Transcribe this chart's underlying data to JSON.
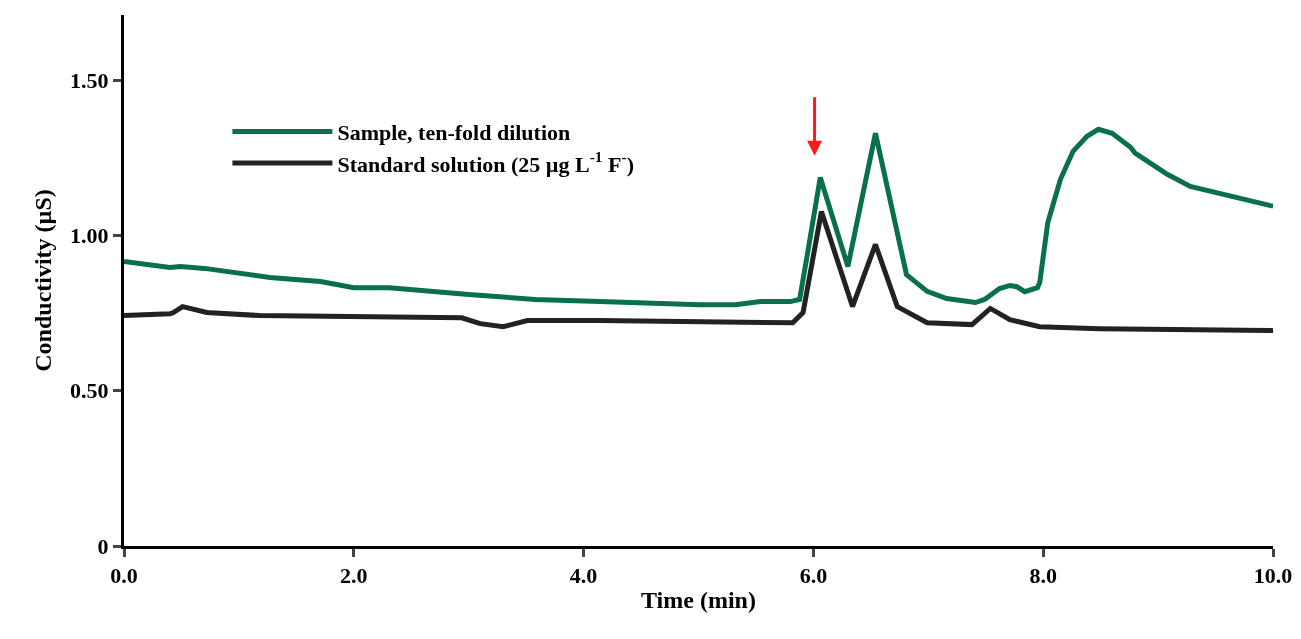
{
  "chart_data": {
    "type": "line",
    "xlabel": "Time (min)",
    "ylabel": "Conductivity (µS)",
    "xlim": [
      0,
      10
    ],
    "ylim": [
      0,
      1.71
    ],
    "xticks": [
      {
        "value": 0,
        "label": "0.0"
      },
      {
        "value": 2,
        "label": "2.0"
      },
      {
        "value": 4,
        "label": "4.0"
      },
      {
        "value": 6,
        "label": "6.0"
      },
      {
        "value": 8,
        "label": "8.0"
      },
      {
        "value": 10,
        "label": "10.0"
      }
    ],
    "yticks": [
      {
        "value": 0,
        "label": "0"
      },
      {
        "value": 0.5,
        "label": "0.50"
      },
      {
        "value": 1,
        "label": "1.00"
      },
      {
        "value": 1.5,
        "label": "1.50"
      }
    ],
    "grid": false,
    "legend": "top left",
    "marker": "none",
    "line_style": "solid",
    "series": [
      {
        "name": "Sample, ten-fold dilution",
        "color": "#09704a",
        "x": [
          0,
          0.4,
          0.49,
          0.7,
          1.27,
          1.71,
          2.0,
          2.31,
          3.0,
          3.58,
          4.14,
          5.01,
          5.32,
          5.54,
          5.8,
          5.88,
          5.94,
          6.06,
          6.3,
          6.54,
          6.81,
          6.99,
          7.16,
          7.41,
          7.49,
          7.62,
          7.71,
          7.77,
          7.84,
          7.95,
          7.97,
          8.04,
          8.15,
          8.26,
          8.38,
          8.48,
          8.6,
          8.76,
          8.8,
          9.08,
          9.28,
          9.97,
          10
        ],
        "values": [
          0.916,
          0.897,
          0.9,
          0.894,
          0.865,
          0.852,
          0.832,
          0.832,
          0.81,
          0.794,
          0.787,
          0.777,
          0.777,
          0.787,
          0.787,
          0.794,
          0.923,
          1.187,
          0.9,
          1.329,
          0.874,
          0.82,
          0.797,
          0.784,
          0.794,
          0.829,
          0.839,
          0.835,
          0.819,
          0.832,
          0.848,
          1.042,
          1.181,
          1.271,
          1.319,
          1.342,
          1.329,
          1.284,
          1.265,
          1.197,
          1.158,
          1.097,
          1.095
        ]
      },
      {
        "name": "Standard solution (25 µg L$^{-1}$ F$^{-}$)",
        "color": "#222222",
        "x": [
          0,
          0.4,
          0.43,
          0.51,
          0.72,
          1.18,
          2.94,
          3.1,
          3.3,
          3.51,
          4.14,
          5.82,
          5.91,
          6.07,
          6.34,
          6.54,
          6.73,
          6.99,
          7.38,
          7.54,
          7.71,
          7.97,
          8.49,
          9.97,
          10
        ],
        "values": [
          0.742,
          0.748,
          0.752,
          0.771,
          0.752,
          0.742,
          0.735,
          0.716,
          0.706,
          0.726,
          0.726,
          0.719,
          0.752,
          1.077,
          0.771,
          0.971,
          0.771,
          0.719,
          0.713,
          0.765,
          0.729,
          0.706,
          0.7,
          0.694,
          0.694
        ]
      }
    ]
  }
}
